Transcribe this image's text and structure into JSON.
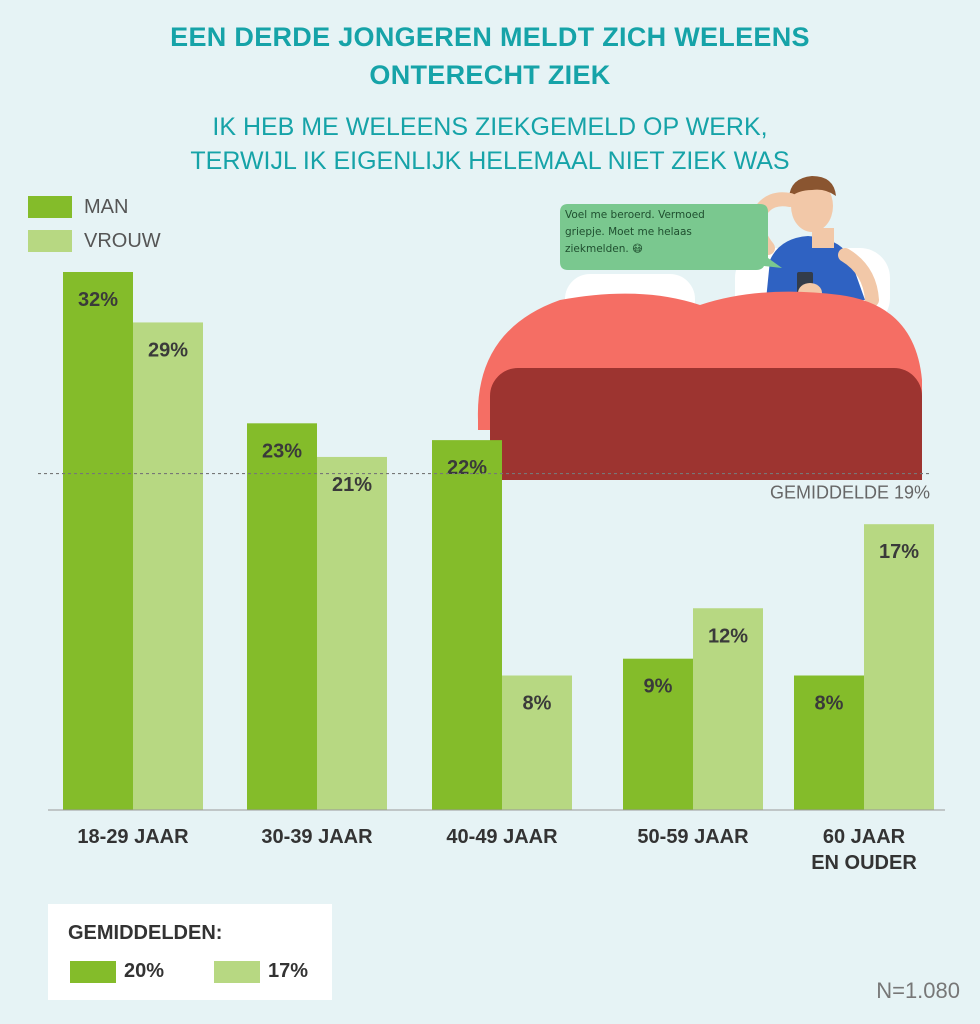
{
  "header": {
    "title_line1": "EEN DERDE JONGEREN MELDT ZICH WELEENS",
    "title_line2": "ONTERECHT ZIEK",
    "subtitle_line1": "IK HEB ME WELEENS ZIEKGEMELD OP WERK,",
    "subtitle_line2": "TERWIJL IK EIGENLIJK HELEMAAL NIET ZIEK WAS"
  },
  "legend": [
    {
      "label": "MAN",
      "color": "#84bc2a"
    },
    {
      "label": "VROUW",
      "color": "#b7d882"
    }
  ],
  "chart_data": {
    "type": "bar",
    "categories": [
      "18-29 JAAR",
      "30-39 JAAR",
      "40-49 JAAR",
      "50-59 JAAR",
      "60 JAAR EN OUDER"
    ],
    "category_lines": [
      [
        "18-29 JAAR"
      ],
      [
        "30-39 JAAR"
      ],
      [
        "40-49 JAAR"
      ],
      [
        "50-59 JAAR"
      ],
      [
        "60 JAAR",
        "EN OUDER"
      ]
    ],
    "series": [
      {
        "name": "MAN",
        "values": [
          32,
          23,
          22,
          9,
          8
        ],
        "color": "#84bc2a"
      },
      {
        "name": "VROUW",
        "values": [
          29,
          21,
          8,
          12,
          17
        ],
        "color": "#b7d882"
      }
    ],
    "data_labels": [
      [
        "32%",
        "23%",
        "22%",
        "9%",
        "8%"
      ],
      [
        "29%",
        "21%",
        "8%",
        "12%",
        "17%"
      ]
    ],
    "reference_line": {
      "value": 19,
      "label": "GEMIDDELDE 19%",
      "style": "dashed"
    },
    "ylim": [
      0,
      32
    ],
    "grid": false,
    "legend_position": "top-left",
    "title": "",
    "xlabel": "",
    "ylabel": ""
  },
  "averages": {
    "title": "GEMIDDELDEN:",
    "man": {
      "value": "20%",
      "color": "#84bc2a"
    },
    "vrouw": {
      "value": "17%",
      "color": "#b7d882"
    }
  },
  "speech_bubble": {
    "text": "Voel me beroerd. Vermoed griepje. Moet me helaas ziekmelden.",
    "emoji": "😷"
  },
  "footer": {
    "n_label": "N=1.080"
  }
}
